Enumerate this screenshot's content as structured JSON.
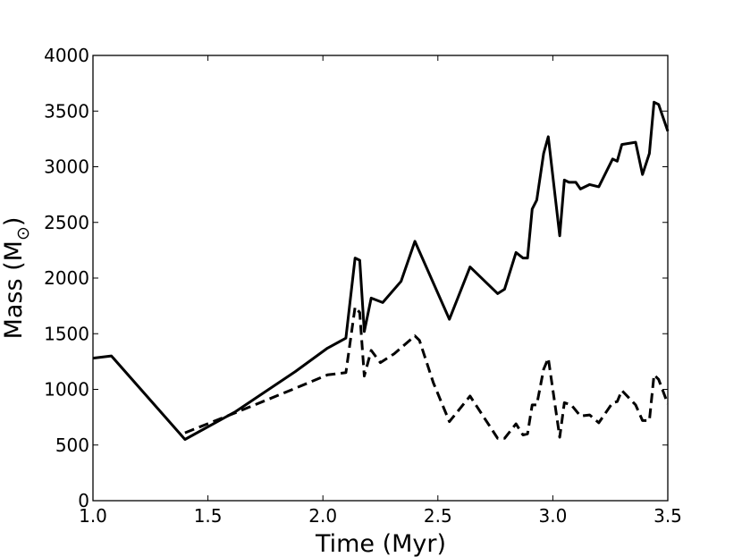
{
  "chart_data": {
    "type": "line",
    "xlabel": "Time (Myr)",
    "ylabel": "Mass (M",
    "ylabel_symbol": "⊙",
    "ylabel_close": ")",
    "xlim": [
      1.0,
      3.5
    ],
    "ylim": [
      0,
      4000
    ],
    "xticks": [
      "1.0",
      "1.5",
      "2.0",
      "2.5",
      "3.0",
      "3.5"
    ],
    "yticks": [
      "0",
      "500",
      "1000",
      "1500",
      "2000",
      "2500",
      "3000",
      "3500",
      "4000"
    ],
    "grid": false,
    "series": [
      {
        "style": "solid",
        "color": "#000000",
        "x": [
          1.0,
          1.08,
          1.4,
          1.62,
          1.88,
          2.02,
          2.1,
          2.14,
          2.16,
          2.18,
          2.21,
          2.26,
          2.34,
          2.4,
          2.55,
          2.64,
          2.76,
          2.79,
          2.84,
          2.87,
          2.89,
          2.91,
          2.93,
          2.96,
          2.98,
          3.03,
          3.05,
          3.07,
          3.1,
          3.12,
          3.16,
          3.2,
          3.26,
          3.28,
          3.3,
          3.36,
          3.39,
          3.42,
          3.44,
          3.46,
          3.5
        ],
        "y": [
          1280,
          1300,
          550,
          800,
          1160,
          1370,
          1460,
          2180,
          2160,
          1520,
          1820,
          1780,
          1970,
          2330,
          1630,
          2100,
          1860,
          1900,
          2230,
          2180,
          2180,
          2620,
          2700,
          3120,
          3270,
          2380,
          2880,
          2860,
          2860,
          2800,
          2840,
          2820,
          3070,
          3050,
          3200,
          3220,
          2930,
          3120,
          3580,
          3560,
          3320
        ]
      },
      {
        "style": "dashed",
        "color": "#000000",
        "x": [
          1.4,
          1.62,
          1.88,
          2.02,
          2.1,
          2.14,
          2.16,
          2.18,
          2.21,
          2.25,
          2.31,
          2.4,
          2.42,
          2.48,
          2.55,
          2.64,
          2.76,
          2.79,
          2.84,
          2.87,
          2.89,
          2.91,
          2.93,
          2.96,
          2.98,
          3.03,
          3.05,
          3.08,
          3.12,
          3.16,
          3.2,
          3.26,
          3.28,
          3.3,
          3.36,
          3.39,
          3.42,
          3.44,
          3.46,
          3.5
        ],
        "y": [
          610,
          790,
          1010,
          1130,
          1150,
          1740,
          1690,
          1120,
          1350,
          1240,
          1320,
          1480,
          1440,
          1060,
          710,
          940,
          560,
          560,
          690,
          590,
          600,
          860,
          860,
          1180,
          1280,
          570,
          880,
          860,
          760,
          770,
          700,
          880,
          890,
          990,
          860,
          720,
          720,
          1130,
          1090,
          870
        ]
      }
    ]
  }
}
